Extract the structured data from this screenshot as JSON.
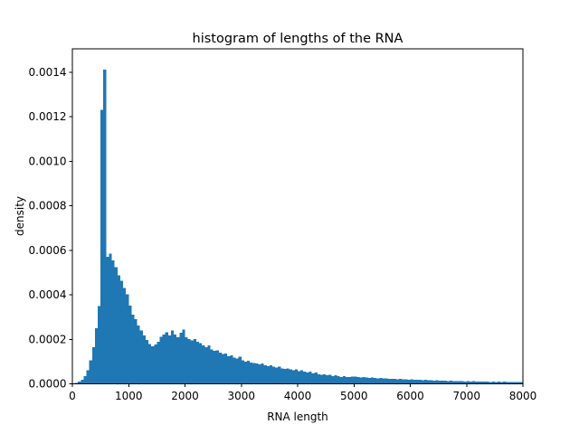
{
  "chart_data": {
    "type": "bar",
    "subtype": "histogram",
    "title": "histogram of lengths of the RNA",
    "xlabel": "RNA length",
    "ylabel": "density",
    "bar_color": "#1f77b4",
    "axis_color": "#000000",
    "background_color": "#ffffff",
    "grid": false,
    "xlim": [
      0,
      8000
    ],
    "ylim": [
      0,
      0.001505
    ],
    "x_ticks": [
      0,
      1000,
      2000,
      3000,
      4000,
      5000,
      6000,
      7000,
      8000
    ],
    "x_tick_labels": [
      "0",
      "1000",
      "2000",
      "3000",
      "4000",
      "5000",
      "6000",
      "7000",
      "8000"
    ],
    "y_ticks": [
      0.0,
      0.0002,
      0.0004,
      0.0006,
      0.0008,
      0.001,
      0.0012,
      0.0014
    ],
    "y_tick_labels": [
      "0.0000",
      "0.0002",
      "0.0004",
      "0.0006",
      "0.0008",
      "0.0010",
      "0.0012",
      "0.0014"
    ],
    "bin_start": 0,
    "bin_width": 50,
    "densities": [
      2e-06,
      5e-06,
      1e-05,
      1.9e-05,
      3.5e-05,
      6e-05,
      0.000105,
      0.000165,
      0.00025,
      0.00035,
      0.00123,
      0.001411,
      0.00057,
      0.000585,
      0.000555,
      0.000525,
      0.000487,
      0.000464,
      0.00043,
      0.000403,
      0.000352,
      0.00031,
      0.00029,
      0.000262,
      0.00024,
      0.000218,
      0.000198,
      0.000178,
      0.000168,
      0.000177,
      0.000189,
      0.000211,
      0.000221,
      0.000232,
      0.000217,
      0.00024,
      0.000222,
      0.000209,
      0.000229,
      0.000243,
      0.000209,
      0.000202,
      0.000195,
      0.000202,
      0.000188,
      0.000182,
      0.000172,
      0.000164,
      0.000172,
      0.000155,
      0.000148,
      0.000151,
      0.000141,
      0.000134,
      0.000137,
      0.000124,
      0.000128,
      0.000118,
      0.000113,
      0.000122,
      0.000106,
      0.0001,
      0.000103,
      9.6e-05,
      9.3e-05,
      9.1e-05,
      8.7e-05,
      9.1e-05,
      8.3e-05,
      8e-05,
      8.3e-05,
      7.7e-05,
      7.3e-05,
      7.7e-05,
      6.9e-05,
      6.7e-05,
      6.9e-05,
      6.4e-05,
      6e-05,
      6.4e-05,
      5.6e-05,
      6e-05,
      5.4e-05,
      5.1e-05,
      5.4e-05,
      4.7e-05,
      5.1e-05,
      4.3e-05,
      4.1e-05,
      4.3e-05,
      3.8e-05,
      4.1e-05,
      3.4e-05,
      3.8e-05,
      3.4e-05,
      3e-05,
      3.4e-05,
      3e-05,
      3e-05,
      3.2e-05,
      3.3e-05,
      3.1e-05,
      2.9e-05,
      3e-05,
      2.8e-05,
      2.7e-05,
      2.8e-05,
      2.6e-05,
      2.5e-05,
      2.6e-05,
      2.4e-05,
      2.5e-05,
      2.3e-05,
      2.2e-05,
      2.3e-05,
      2.1e-05,
      2.2e-05,
      2e-05,
      2.1e-05,
      1.9e-05,
      2e-05,
      1.9e-05,
      1.8e-05,
      1.9e-05,
      1.7e-05,
      1.8e-05,
      1.6e-05,
      1.7e-05,
      1.5e-05,
      1.6e-05,
      1.4e-05,
      1.5e-05,
      1.4e-05,
      1.3e-05,
      1.4e-05,
      1.2e-05,
      1.3e-05,
      1.2e-05,
      1.3e-05,
      1.1e-05,
      1.2e-05,
      1.1e-05,
      1.2e-05,
      1e-05,
      1.1e-05,
      1e-05,
      1.1e-05,
      1e-05,
      9e-06,
      1e-05,
      9e-06,
      1e-05,
      9e-06,
      1e-05,
      9e-06,
      8e-06,
      9e-06,
      8e-06,
      9e-06,
      8e-06
    ]
  }
}
